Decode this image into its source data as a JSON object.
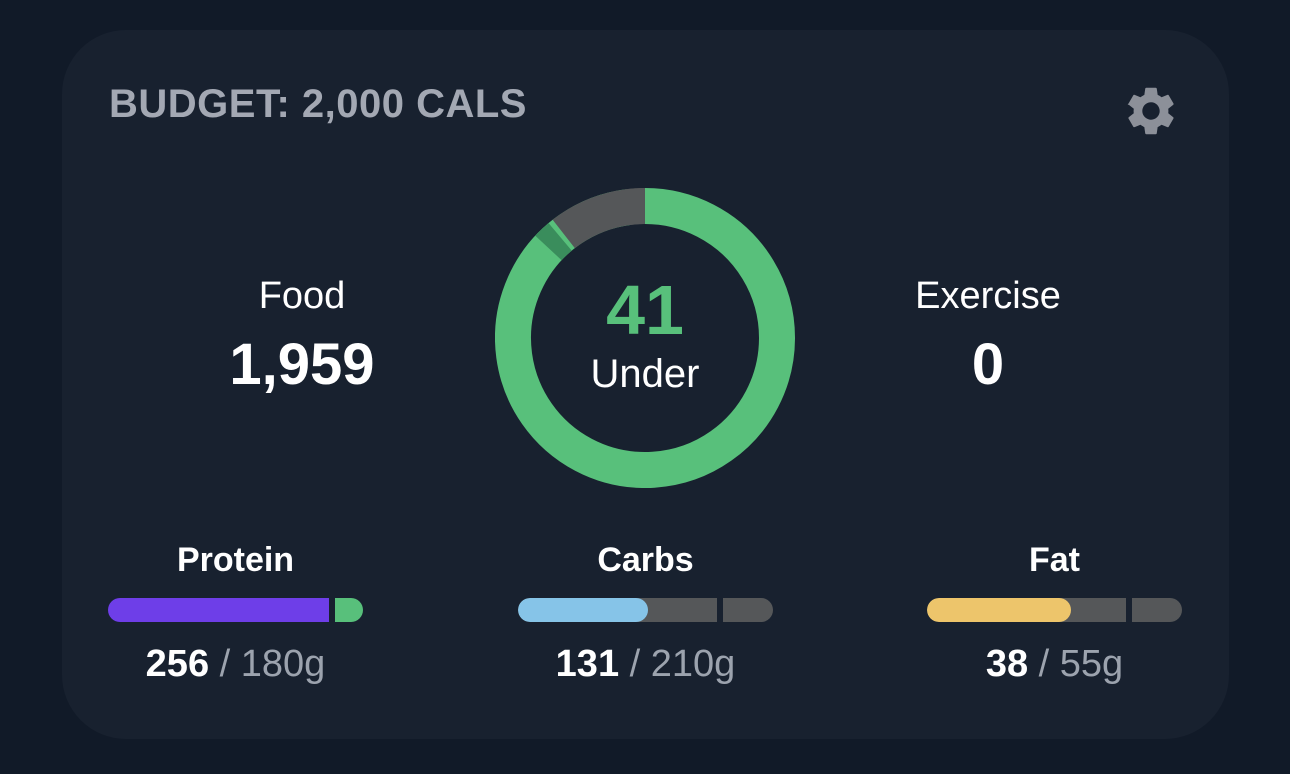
{
  "budget": {
    "title": "BUDGET: 2,000 CALS"
  },
  "icons": {
    "settings": "gear-icon"
  },
  "summary": {
    "food": {
      "label": "Food",
      "value": "1,959"
    },
    "exercise": {
      "label": "Exercise",
      "value": "0"
    },
    "remaining": {
      "value": "41",
      "label": "Under"
    }
  },
  "ring_data": {
    "budget": 2000,
    "food": 1959,
    "remaining": 41,
    "colors": {
      "eaten": "#58c07b",
      "eaten_dim": "#3a8d5c",
      "remaining": "#555759"
    }
  },
  "macros": [
    {
      "name": "Protein",
      "eaten": "256",
      "goal": "180g",
      "eaten_value": 256,
      "goal_value": 180,
      "color": "#6e3ee8",
      "over_color": "#58c07b"
    },
    {
      "name": "Carbs",
      "eaten": "131",
      "goal": "210g",
      "eaten_value": 131,
      "goal_value": 210,
      "color": "#86c4e8"
    },
    {
      "name": "Fat",
      "eaten": "38",
      "goal": "55g",
      "eaten_value": 38,
      "goal_value": 55,
      "color": "#edc56b"
    }
  ],
  "colors": {
    "track": "#555759",
    "accent_green": "#58c07b",
    "background": "#111a28",
    "card": "#18212f"
  }
}
